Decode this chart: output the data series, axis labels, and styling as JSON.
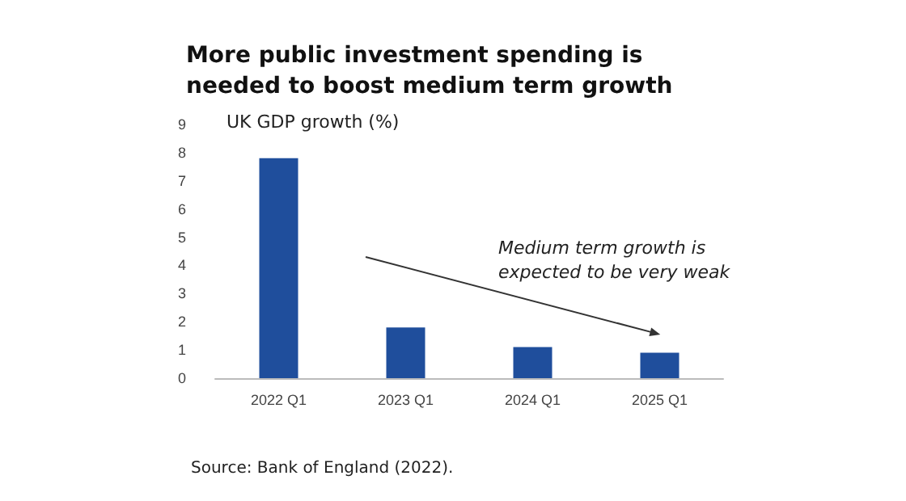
{
  "chart_data": {
    "type": "bar",
    "title": "More public investment spending is needed to boost medium term growth",
    "ylabel": "UK GDP growth (%)",
    "categories": [
      "2022 Q1",
      "2023 Q1",
      "2024 Q1",
      "2025 Q1"
    ],
    "values": [
      7.8,
      1.8,
      1.1,
      0.9
    ],
    "color": "#1f4e9c",
    "ylim": [
      0,
      9
    ],
    "yticks": [
      0,
      1,
      2,
      3,
      4,
      5,
      6,
      7,
      8,
      9
    ],
    "grid": false,
    "annotations": [
      "Medium term growth is expected to be very weak",
      "Source: Bank of England (2022)."
    ]
  }
}
